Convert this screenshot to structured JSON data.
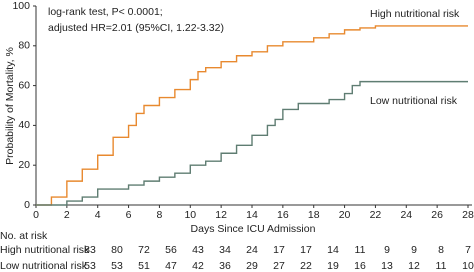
{
  "chart_data": {
    "type": "step",
    "annotations": [
      "log-rank test, P< 0.0001;",
      "adjusted HR=2.01 (95%CI, 1.22-3.32)"
    ],
    "x_label": "Days Since ICU Admission",
    "y_label": "Probability of Mortality, %",
    "xlim": [
      0,
      28
    ],
    "xticks": [
      0,
      2,
      4,
      6,
      8,
      10,
      12,
      14,
      16,
      18,
      20,
      22,
      24,
      26,
      28
    ],
    "ylim": [
      0,
      100
    ],
    "yticks": [
      0,
      20,
      40,
      60,
      80,
      100
    ],
    "series": [
      {
        "name": "High nutritional risk",
        "color": "#e8892f",
        "x": [
          0,
          1,
          2,
          3,
          4,
          5,
          6,
          6.5,
          7,
          8,
          9,
          10,
          10.5,
          11,
          12,
          13,
          14,
          15,
          16,
          18,
          19,
          20,
          21,
          22,
          28
        ],
        "values": [
          0,
          4,
          12,
          18,
          25,
          34,
          40,
          46,
          50,
          54,
          58,
          63,
          67,
          69,
          72,
          75,
          77,
          80,
          82,
          84,
          86,
          88,
          89,
          90,
          90
        ]
      },
      {
        "name": "Low nutritional risk",
        "color": "#5f7d72",
        "x": [
          0,
          2,
          3,
          4,
          6,
          7,
          8,
          9,
          10,
          11,
          12,
          13,
          14,
          15,
          15.5,
          16,
          17,
          19,
          20,
          20.5,
          21,
          28
        ],
        "values": [
          0,
          2,
          4,
          8,
          10,
          12,
          14,
          16,
          20,
          22,
          26,
          30,
          35,
          40,
          43,
          48,
          51,
          53,
          56,
          60,
          62,
          62
        ]
      }
    ],
    "risk_table": {
      "title": "No. at risk",
      "rows": [
        {
          "name": "High nutritional risk",
          "values": [
            83,
            80,
            72,
            56,
            43,
            34,
            24,
            17,
            17,
            14,
            11,
            9,
            9,
            8,
            7
          ]
        },
        {
          "name": "Low nutritional risk",
          "values": [
            53,
            53,
            51,
            47,
            42,
            36,
            29,
            27,
            22,
            19,
            16,
            13,
            12,
            11,
            10
          ]
        }
      ]
    }
  }
}
